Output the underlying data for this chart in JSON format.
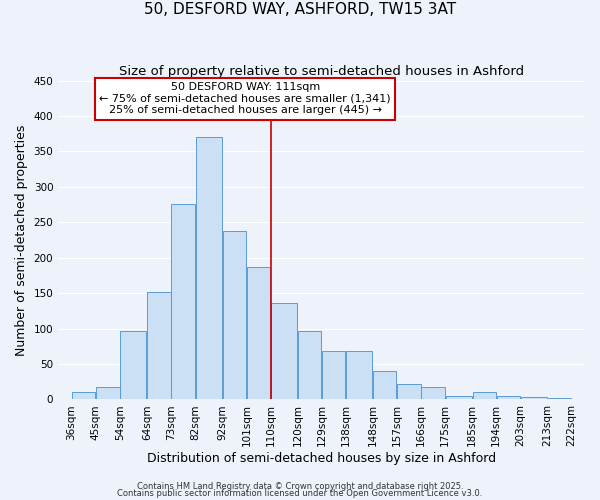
{
  "title": "50, DESFORD WAY, ASHFORD, TW15 3AT",
  "subtitle": "Size of property relative to semi-detached houses in Ashford",
  "xlabel": "Distribution of semi-detached houses by size in Ashford",
  "ylabel": "Number of semi-detached properties",
  "bins": [
    36,
    45,
    54,
    64,
    73,
    82,
    92,
    101,
    110,
    120,
    129,
    138,
    148,
    157,
    166,
    175,
    185,
    194,
    203,
    213,
    222
  ],
  "counts": [
    10,
    18,
    97,
    152,
    276,
    370,
    238,
    187,
    136,
    97,
    68,
    68,
    40,
    22,
    17,
    5,
    10,
    5,
    3,
    2
  ],
  "bar_facecolor": "#cce0f5",
  "bar_edgecolor": "#5b9bd5",
  "vline_x": 110,
  "vline_color": "#cc0000",
  "annotation_title": "50 DESFORD WAY: 111sqm",
  "annotation_line1": "← 75% of semi-detached houses are smaller (1,341)",
  "annotation_line2": "25% of semi-detached houses are larger (445) →",
  "annotation_box_edgecolor": "#cc0000",
  "annotation_box_facecolor": "#ffffff",
  "ylim": [
    0,
    450
  ],
  "yticks": [
    0,
    50,
    100,
    150,
    200,
    250,
    300,
    350,
    400,
    450
  ],
  "tick_labels": [
    "36sqm",
    "45sqm",
    "54sqm",
    "64sqm",
    "73sqm",
    "82sqm",
    "92sqm",
    "101sqm",
    "110sqm",
    "120sqm",
    "129sqm",
    "138sqm",
    "148sqm",
    "157sqm",
    "166sqm",
    "175sqm",
    "185sqm",
    "194sqm",
    "203sqm",
    "213sqm",
    "222sqm"
  ],
  "footer1": "Contains HM Land Registry data © Crown copyright and database right 2025.",
  "footer2": "Contains public sector information licensed under the Open Government Licence v3.0.",
  "bg_color": "#eef2fb",
  "grid_color": "#ffffff",
  "title_fontsize": 11,
  "subtitle_fontsize": 9.5,
  "axis_label_fontsize": 9,
  "tick_fontsize": 7.5,
  "annotation_fontsize": 8,
  "footer_fontsize": 6
}
